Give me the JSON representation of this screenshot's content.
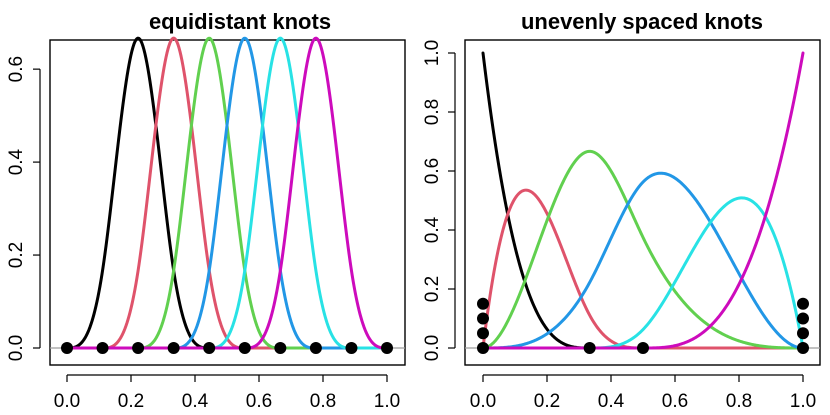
{
  "chart_data": [
    {
      "type": "line",
      "title": "equidistant knots",
      "xlabel": "",
      "ylabel": "",
      "xlim": [
        0,
        1
      ],
      "ylim": [
        0,
        0.667
      ],
      "x_ticks": [
        "0.0",
        "0.2",
        "0.4",
        "0.6",
        "0.8",
        "1.0"
      ],
      "y_ticks": [
        "0.0",
        "0.2",
        "0.4",
        "0.6"
      ],
      "grid": false,
      "basis": "cubic-bspline",
      "knots": [
        0,
        0.1111,
        0.2222,
        0.3333,
        0.4444,
        0.5556,
        0.6667,
        0.7778,
        0.8889,
        1.0
      ],
      "series_colors": [
        "#000000",
        "#df536b",
        "#61d04f",
        "#2297e6",
        "#28e2e5",
        "#cd0bbc"
      ],
      "knot_marks": {
        "x": [
          0,
          0.1111,
          0.2222,
          0.3333,
          0.4444,
          0.5556,
          0.6667,
          0.7778,
          0.8889,
          1.0
        ],
        "y": [
          0,
          0,
          0,
          0,
          0,
          0,
          0,
          0,
          0,
          0
        ]
      }
    },
    {
      "type": "line",
      "title": "unevenly spaced knots",
      "xlabel": "",
      "ylabel": "",
      "xlim": [
        0,
        1
      ],
      "ylim": [
        0,
        1
      ],
      "x_ticks": [
        "0.0",
        "0.2",
        "0.4",
        "0.6",
        "0.8",
        "1.0"
      ],
      "y_ticks": [
        "0.0",
        "0.2",
        "0.4",
        "0.6",
        "0.8",
        "1.0"
      ],
      "grid": false,
      "basis": "cubic-bspline",
      "knots": [
        0,
        0,
        0,
        0,
        0.3333,
        0.5,
        1,
        1,
        1,
        1
      ],
      "series_colors": [
        "#000000",
        "#df536b",
        "#61d04f",
        "#2297e6",
        "#28e2e5",
        "#cd0bbc"
      ],
      "knot_marks": {
        "x": [
          0,
          0,
          0,
          0,
          0.3333,
          0.5,
          1,
          1,
          1,
          1
        ],
        "y": [
          0,
          0.05,
          0.1,
          0.15,
          0,
          0,
          0,
          0.05,
          0.1,
          0.15
        ]
      }
    }
  ]
}
